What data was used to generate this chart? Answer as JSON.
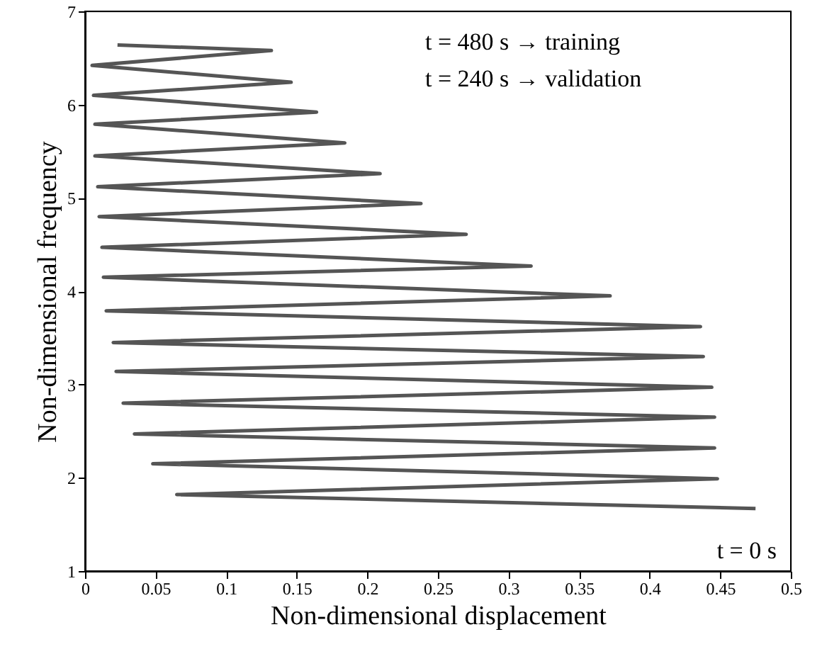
{
  "chart_data": {
    "type": "line",
    "xlabel": "Non-dimensional displacement",
    "ylabel": "Non-dimensional frequency",
    "annotations": [
      "t = 480 s  →  training",
      "t = 240 s  →  validation",
      "t = 0 s"
    ],
    "series": [
      {
        "color": "#555555",
        "x": [
          0.475,
          0.065,
          0.448,
          0.048,
          0.446,
          0.035,
          0.446,
          0.027,
          0.444,
          0.022,
          0.438,
          0.02,
          0.436,
          0.015,
          0.372,
          0.013,
          0.316,
          0.012,
          0.27,
          0.01,
          0.238,
          0.009,
          0.209,
          0.007,
          0.184,
          0.007,
          0.164,
          0.006,
          0.146,
          0.005,
          0.132,
          0.023
        ],
        "values": [
          1.67,
          1.82,
          1.99,
          2.15,
          2.32,
          2.47,
          2.65,
          2.8,
          2.97,
          3.14,
          3.3,
          3.45,
          3.62,
          3.79,
          3.95,
          4.15,
          4.27,
          4.47,
          4.61,
          4.8,
          4.94,
          5.12,
          5.26,
          5.45,
          5.59,
          5.79,
          5.92,
          6.1,
          6.24,
          6.42,
          6.58,
          6.64
        ]
      }
    ],
    "xlim": [
      0,
      0.5
    ],
    "xticks": [
      0,
      0.05,
      0.1,
      0.15,
      0.2,
      0.25,
      0.3,
      0.35,
      0.4,
      0.45,
      0.5
    ],
    "ylim": [
      1,
      7
    ],
    "yticks": [
      1,
      2,
      3,
      4,
      5,
      6,
      7
    ],
    "grid": false,
    "marker": "none",
    "line_style": "solid"
  }
}
